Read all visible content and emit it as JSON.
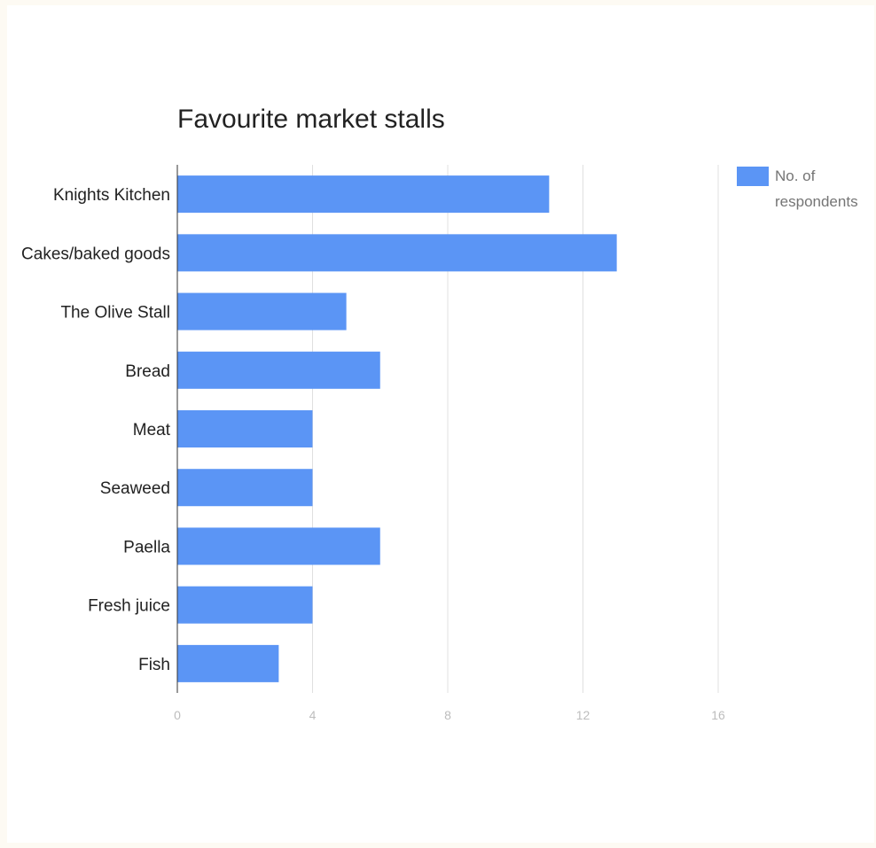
{
  "chart_data": {
    "type": "bar",
    "orientation": "horizontal",
    "title": "Favourite market stalls",
    "categories": [
      "Knights Kitchen",
      "Cakes/baked goods",
      "The Olive Stall",
      "Bread",
      "Meat",
      "Seaweed",
      "Paella",
      "Fresh juice",
      "Fish"
    ],
    "series": [
      {
        "name": "No. of respondents",
        "values": [
          11,
          13,
          5,
          6,
          4,
          4,
          6,
          4,
          3
        ],
        "color": "#5b95f5"
      }
    ],
    "xlim": [
      0,
      16
    ],
    "xticks": [
      0,
      4,
      8,
      12,
      16
    ],
    "grid": true,
    "legend": "top-right",
    "legend_lines": [
      "No. of",
      "respondents"
    ]
  }
}
